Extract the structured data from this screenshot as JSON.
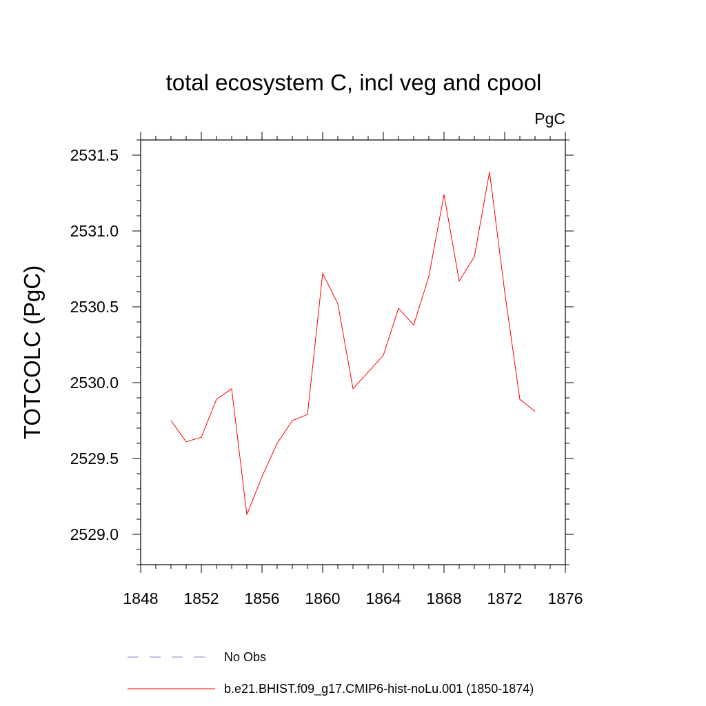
{
  "chart_data": {
    "type": "line",
    "title": "total ecosystem C, incl veg and cpool",
    "units": "PgC",
    "ylabel": "TOTCOLC  (PgC)",
    "xlabel": "",
    "xlim": [
      1848,
      1876
    ],
    "ylim": [
      2528.8,
      2531.6
    ],
    "xticks": [
      1848,
      1852,
      1856,
      1860,
      1864,
      1868,
      1872,
      1876
    ],
    "xtick_labels": [
      "1848",
      "1852",
      "1856",
      "1860",
      "1864",
      "1868",
      "1872",
      "1876"
    ],
    "yticks": [
      2529.0,
      2529.5,
      2530.0,
      2530.5,
      2531.0,
      2531.5
    ],
    "ytick_labels": [
      "2529.0",
      "2529.5",
      "2530.0",
      "2530.5",
      "2531.0",
      "2531.5"
    ],
    "grid": false,
    "legend_position": "bottom",
    "series": [
      {
        "name": "b.e21.BHIST.f09_g17.CMIP6-hist-noLu.001 (1850-1874)",
        "color": "#ff0000",
        "style": "solid",
        "x": [
          1850,
          1851,
          1852,
          1853,
          1854,
          1855,
          1856,
          1857,
          1858,
          1859,
          1860,
          1861,
          1862,
          1863,
          1864,
          1865,
          1866,
          1867,
          1868,
          1869,
          1870,
          1871,
          1872,
          1873,
          1874
        ],
        "y": [
          2529.75,
          2529.61,
          2529.64,
          2529.89,
          2529.96,
          2529.13,
          2529.38,
          2529.6,
          2529.75,
          2529.79,
          2530.72,
          2530.52,
          2529.96,
          2530.07,
          2530.18,
          2530.49,
          2530.38,
          2530.7,
          2531.24,
          2530.67,
          2530.83,
          2531.39,
          2530.6,
          2529.89,
          2529.81
        ]
      }
    ],
    "legend": [
      {
        "label": "No Obs",
        "color": "#8080c0",
        "style": "dashed"
      },
      {
        "label": "b.e21.BHIST.f09_g17.CMIP6-hist-noLu.001 (1850-1874)",
        "color": "#ff0000",
        "style": "solid"
      }
    ]
  }
}
